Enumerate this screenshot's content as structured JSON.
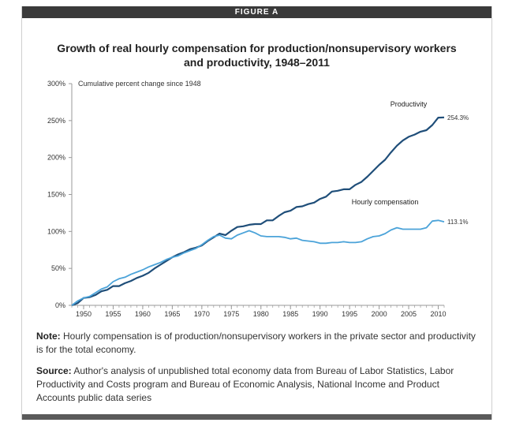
{
  "figure_label": "FIGURE A",
  "title_line1": "Growth of real hourly compensation for production/nonsupervisory workers",
  "title_line2": "and productivity, 1948–2011",
  "note_label": "Note:",
  "note_text": "Hourly compensation is of production/nonsupervisory workers in the private sector and productivity is for the total economy.",
  "source_label": "Source:",
  "source_text": "Author's analysis of unpublished total economy data from Bureau of Labor Statistics, Labor Productivity and Costs program and Bureau of Economic Analysis, National Income and Product Accounts public data series",
  "colors": {
    "productivity": "#1f4e79",
    "compensation": "#4ba3d9",
    "axis": "#999999",
    "text": "#333333"
  },
  "chart_data": {
    "type": "line",
    "ylabel": "Cumulative percent change since 1948",
    "xlim": [
      1948,
      2011
    ],
    "ylim": [
      0,
      300
    ],
    "x_ticks": [
      1950,
      1955,
      1960,
      1965,
      1970,
      1975,
      1980,
      1985,
      1990,
      1995,
      2000,
      2005,
      2010
    ],
    "y_ticks": [
      0,
      50,
      100,
      150,
      200,
      250,
      300
    ],
    "y_tick_labels": [
      "0%",
      "50%",
      "100%",
      "150%",
      "200%",
      "250%",
      "300%"
    ],
    "grid": false,
    "series": [
      {
        "name": "Productivity",
        "end_label": "254.3%",
        "x": [
          1948,
          1949,
          1950,
          1951,
          1952,
          1953,
          1954,
          1955,
          1956,
          1957,
          1958,
          1959,
          1960,
          1961,
          1962,
          1963,
          1964,
          1965,
          1966,
          1967,
          1968,
          1969,
          1970,
          1971,
          1972,
          1973,
          1974,
          1975,
          1976,
          1977,
          1978,
          1979,
          1980,
          1981,
          1982,
          1983,
          1984,
          1985,
          1986,
          1987,
          1988,
          1989,
          1990,
          1991,
          1992,
          1993,
          1994,
          1995,
          1996,
          1997,
          1998,
          1999,
          2000,
          2001,
          2002,
          2003,
          2004,
          2005,
          2006,
          2007,
          2008,
          2009,
          2010,
          2011
        ],
        "y": [
          0,
          3,
          10,
          11,
          14,
          19,
          21,
          26,
          26,
          30,
          33,
          37,
          40,
          44,
          50,
          55,
          60,
          65,
          69,
          72,
          76,
          78,
          81,
          87,
          92,
          97,
          95,
          101,
          106,
          107,
          109,
          110,
          110,
          115,
          115,
          121,
          126,
          128,
          133,
          134,
          137,
          139,
          144,
          147,
          154,
          155,
          157,
          157,
          163,
          167,
          174,
          182,
          190,
          197,
          207,
          216,
          223,
          228,
          231,
          235,
          237,
          244,
          254,
          254.3
        ]
      },
      {
        "name": "Hourly compensation",
        "end_label": "113.1%",
        "x": [
          1948,
          1949,
          1950,
          1951,
          1952,
          1953,
          1954,
          1955,
          1956,
          1957,
          1958,
          1959,
          1960,
          1961,
          1962,
          1963,
          1964,
          1965,
          1966,
          1967,
          1968,
          1969,
          1970,
          1971,
          1972,
          1973,
          1974,
          1975,
          1976,
          1977,
          1978,
          1979,
          1980,
          1981,
          1982,
          1983,
          1984,
          1985,
          1986,
          1987,
          1988,
          1989,
          1990,
          1991,
          1992,
          1993,
          1994,
          1995,
          1996,
          1997,
          1998,
          1999,
          2000,
          2001,
          2002,
          2003,
          2004,
          2005,
          2006,
          2007,
          2008,
          2009,
          2010,
          2011
        ],
        "y": [
          0,
          6,
          10,
          12,
          17,
          22,
          25,
          32,
          36,
          38,
          42,
          45,
          48,
          52,
          55,
          58,
          62,
          65,
          67,
          71,
          74,
          77,
          82,
          88,
          93,
          95,
          91,
          90,
          95,
          98,
          101,
          98,
          94,
          93,
          93,
          93,
          92,
          90,
          91,
          88,
          87,
          86,
          84,
          84,
          85,
          85,
          86,
          85,
          85,
          86,
          90,
          93,
          94,
          97,
          102,
          105,
          103,
          103,
          103,
          103,
          105,
          114,
          115,
          113.1
        ]
      }
    ]
  }
}
